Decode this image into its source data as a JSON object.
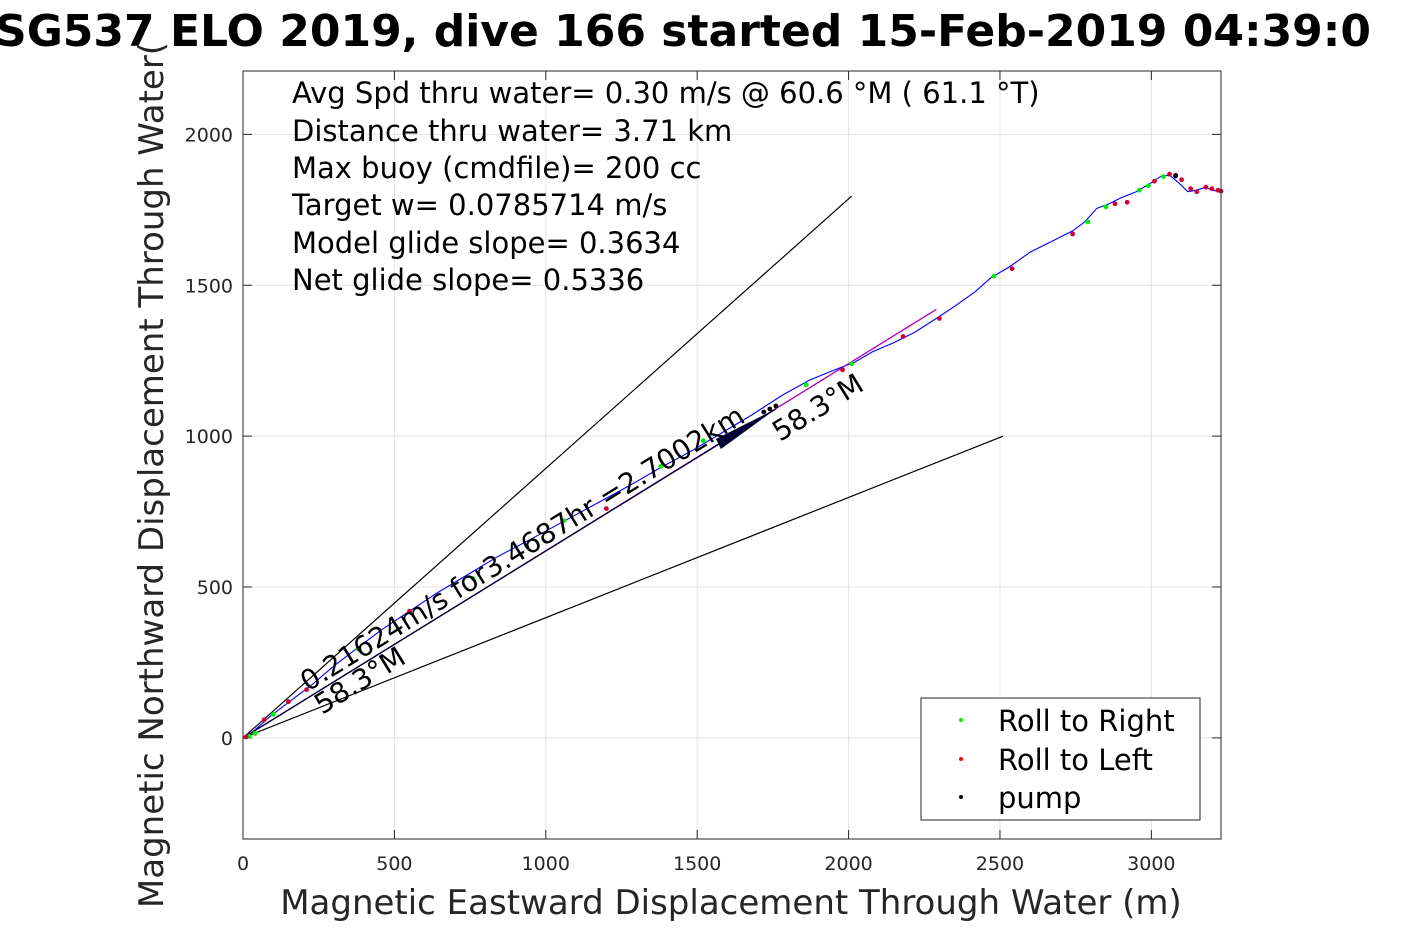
{
  "chart_data": {
    "type": "line",
    "title": "SG537 ELO 2019, dive 166 started 15-Feb-2019 04:39:0",
    "xlabel": "Magnetic Eastward Displacement Through Water (m)",
    "ylabel": "Magnetic Northward Displacement Through Water(",
    "xlim": [
      0,
      3230
    ],
    "ylim": [
      -335,
      2210
    ],
    "xticks": [
      "0",
      "500",
      "1000",
      "1500",
      "2000",
      "2500",
      "3000"
    ],
    "yticks": [
      "0",
      "500",
      "1000",
      "1500",
      "2000"
    ],
    "grid": true,
    "info_lines": [
      "Avg Spd thru water=  0.30 m/s @  60.6 °M ( 61.1 °T)",
      "Distance thru water=  3.71 km",
      "Max buoy (cmdfile)= 200 cc",
      "Target w= 0.0785714 m/s",
      "Model glide slope= 0.3634",
      "Net glide slope= 0.5336"
    ],
    "annotations": {
      "current": "0.21624m/s for3.4687hr =2.7002km",
      "heading_lower": "58.3°M",
      "heading_upper": "58.3°M"
    },
    "reference_lines": [
      {
        "x": [
          0,
          2010
        ],
        "y": [
          0,
          1795
        ]
      },
      {
        "x": [
          0,
          2510
        ],
        "y": [
          0,
          1000
        ]
      },
      {
        "x": [
          0,
          2290
        ],
        "y": [
          0,
          1420
        ]
      }
    ],
    "current_vector": {
      "x": [
        0,
        1760
      ],
      "y": [
        0,
        1090
      ]
    },
    "series": [
      {
        "name": "track",
        "color": "#0000ff",
        "x": [
          0,
          30,
          90,
          160,
          230,
          300,
          380,
          460,
          550,
          640,
          740,
          840,
          950,
          1060,
          1170,
          1280,
          1380,
          1480,
          1580,
          1680,
          1780,
          1870,
          1950,
          2020,
          2080,
          2150,
          2220,
          2290,
          2350,
          2420,
          2470,
          2530,
          2600,
          2680,
          2740,
          2780,
          2820,
          2860,
          2900,
          2950,
          3000,
          3030,
          3060,
          3090,
          3120,
          3150,
          3180,
          3200,
          3230
        ],
        "y": [
          0,
          18,
          72,
          125,
          178,
          238,
          300,
          360,
          420,
          480,
          540,
          600,
          658,
          718,
          778,
          838,
          896,
          950,
          1010,
          1070,
          1135,
          1185,
          1218,
          1245,
          1280,
          1310,
          1345,
          1390,
          1430,
          1480,
          1525,
          1560,
          1610,
          1650,
          1680,
          1710,
          1755,
          1770,
          1790,
          1810,
          1840,
          1860,
          1865,
          1840,
          1810,
          1815,
          1825,
          1815,
          1810
        ]
      },
      {
        "name": "model",
        "color": "#cc00cc",
        "x": [
          0,
          2290
        ],
        "y": [
          0,
          1420
        ]
      }
    ],
    "points": {
      "Roll to Right": {
        "color": "#00ee00",
        "x": [
          20,
          40,
          100,
          380,
          760,
          1060,
          1380,
          1520,
          1860,
          2010,
          2480,
          2790,
          2850,
          2960,
          2990,
          3040
        ],
        "y": [
          5,
          15,
          78,
          295,
          528,
          720,
          900,
          985,
          1170,
          1240,
          1530,
          1710,
          1760,
          1815,
          1830,
          1860
        ]
      },
      "Roll to Left": {
        "color": "#cc0033",
        "x": [
          10,
          70,
          150,
          210,
          550,
          1200,
          1980,
          2180,
          2300,
          2540,
          2740,
          2880,
          2920,
          3010,
          3060,
          3080,
          3100,
          3130,
          3150,
          3180,
          3200,
          3220,
          3230
        ],
        "y": [
          3,
          60,
          120,
          160,
          420,
          760,
          1220,
          1330,
          1390,
          1555,
          1670,
          1770,
          1775,
          1845,
          1868,
          1865,
          1850,
          1820,
          1810,
          1825,
          1820,
          1815,
          1812
        ]
      },
      "pump": {
        "color": "#000000",
        "x": [
          1720,
          1740,
          1760,
          3080
        ],
        "y": [
          1080,
          1090,
          1100,
          1862
        ]
      }
    },
    "legend": {
      "placement": "bottom-right",
      "items": [
        {
          "label": "Roll to Right",
          "color": "#00ee00"
        },
        {
          "label": "Roll to Left",
          "color": "#ff0000"
        },
        {
          "label": "pump",
          "color": "#000000"
        }
      ]
    }
  }
}
